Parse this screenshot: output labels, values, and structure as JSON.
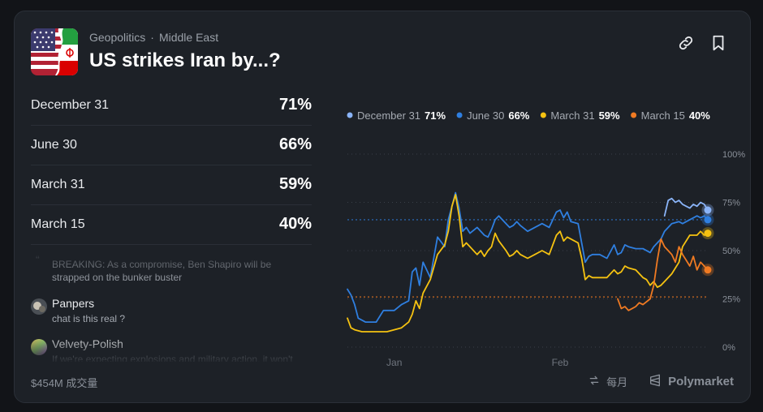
{
  "header": {
    "category": "Geopolitics",
    "separator": "·",
    "subcategory": "Middle East",
    "title": "US strikes Iran by...?"
  },
  "outcomes": [
    {
      "label": "December 31",
      "pct": "71%"
    },
    {
      "label": "June 30",
      "pct": "66%"
    },
    {
      "label": "March 31",
      "pct": "59%"
    },
    {
      "label": "March 15",
      "pct": "40%"
    }
  ],
  "comments": [
    {
      "user": "",
      "text": "BREAKING: As a compromise, Ben Shapiro will be strapped on the bunker buster"
    },
    {
      "user": "Panpers",
      "text": "chat is this real ?"
    },
    {
      "user": "Velvety-Polish",
      "text": "If we're expecting explosions and military action, it won't"
    }
  ],
  "footer": {
    "volume": "$454M 成交量",
    "interval": "每月",
    "brand": "Polymarket"
  },
  "colors": {
    "december": "#8ab4f8",
    "june": "#2f7fe0",
    "march31": "#f5c211",
    "march15": "#f07a22"
  },
  "chart_data": {
    "type": "line",
    "title": "",
    "xlabel": "",
    "ylabel": "",
    "ylim": [
      0,
      100
    ],
    "yticks": [
      {
        "v": 100,
        "label": "100%"
      },
      {
        "v": 75,
        "label": "75%"
      },
      {
        "v": 50,
        "label": "50%"
      },
      {
        "v": 25,
        "label": "25%"
      },
      {
        "v": 0,
        "label": "0%"
      }
    ],
    "xlim": [
      0,
      100
    ],
    "xticks": [
      {
        "x": 13,
        "label": "Jan"
      },
      {
        "x": 59,
        "label": "Feb"
      }
    ],
    "legend": [
      {
        "name": "December 31",
        "value": "71%",
        "color": "#8ab4f8"
      },
      {
        "name": "June 30",
        "value": "66%",
        "color": "#2f7fe0"
      },
      {
        "name": "March 31",
        "value": "59%",
        "color": "#f5c211"
      },
      {
        "name": "March 15",
        "value": "40%",
        "color": "#f07a22"
      }
    ],
    "series": [
      {
        "name": "December 31",
        "color": "#8ab4f8",
        "x": [
          88,
          89,
          90,
          91,
          92,
          93,
          94,
          95,
          96,
          97,
          98,
          99,
          100
        ],
        "y": [
          68,
          76,
          77,
          75,
          76,
          74,
          73,
          72,
          74,
          73,
          75,
          74,
          71
        ]
      },
      {
        "name": "June 30",
        "color": "#2f7fe0",
        "x": [
          0,
          1,
          2,
          3,
          5,
          8,
          10,
          13,
          15,
          17,
          18,
          19,
          20,
          21,
          23,
          25,
          27,
          28,
          29,
          30,
          31,
          32,
          33,
          34,
          36,
          37,
          38,
          39,
          40,
          41,
          42,
          44,
          45,
          46,
          47,
          48,
          50,
          52,
          54,
          56,
          58,
          59,
          60,
          61,
          62,
          64,
          65,
          66,
          67,
          68,
          70,
          72,
          74,
          75,
          76,
          77,
          78,
          80,
          82,
          84,
          85,
          86,
          87,
          88,
          90,
          92,
          93,
          95,
          97,
          98,
          99,
          100
        ],
        "y": [
          30,
          27,
          22,
          15,
          13,
          13,
          19,
          19,
          22,
          24,
          39,
          41,
          32,
          44,
          36,
          57,
          52,
          66,
          73,
          80,
          72,
          60,
          62,
          59,
          62,
          60,
          58,
          57,
          61,
          66,
          68,
          64,
          62,
          63,
          65,
          63,
          60,
          62,
          64,
          62,
          70,
          71,
          67,
          70,
          65,
          64,
          54,
          44,
          47,
          48,
          48,
          46,
          53,
          48,
          49,
          53,
          52,
          51,
          51,
          49,
          52,
          54,
          56,
          60,
          64,
          65,
          64,
          66,
          68,
          67,
          68,
          66
        ]
      },
      {
        "name": "March 31",
        "color": "#f5c211",
        "x": [
          0,
          1,
          2,
          4,
          6,
          8,
          10,
          11,
          13,
          15,
          17,
          18,
          19,
          20,
          21,
          23,
          25,
          27,
          28,
          29,
          30,
          31,
          32,
          33,
          34,
          36,
          37,
          38,
          39,
          40,
          41,
          42,
          44,
          45,
          46,
          47,
          48,
          50,
          52,
          54,
          56,
          58,
          59,
          60,
          61,
          62,
          64,
          65,
          66,
          67,
          68,
          70,
          72,
          74,
          75,
          76,
          77,
          78,
          80,
          82,
          83,
          84,
          85,
          86,
          87,
          88,
          90,
          92,
          93,
          95,
          97,
          98,
          99,
          100
        ],
        "y": [
          15,
          10,
          9,
          8,
          8,
          8,
          8,
          8,
          9,
          10,
          13,
          17,
          24,
          20,
          28,
          35,
          48,
          53,
          60,
          73,
          79,
          68,
          52,
          54,
          52,
          48,
          50,
          47,
          50,
          52,
          59,
          55,
          50,
          47,
          48,
          50,
          48,
          46,
          48,
          50,
          48,
          58,
          60,
          55,
          57,
          56,
          54,
          46,
          35,
          37,
          36,
          36,
          36,
          40,
          38,
          39,
          42,
          41,
          40,
          36,
          35,
          32,
          34,
          31,
          32,
          34,
          38,
          44,
          52,
          58,
          58,
          60,
          58,
          59
        ]
      },
      {
        "name": "March 15",
        "color": "#f07a22",
        "x": [
          75,
          76,
          77,
          78,
          79,
          80,
          81,
          82,
          84,
          85,
          86,
          87,
          88,
          89,
          90,
          91,
          92,
          93,
          94,
          95,
          96,
          97,
          98,
          99,
          100
        ],
        "y": [
          25,
          20,
          21,
          19,
          20,
          21,
          23,
          22,
          25,
          32,
          45,
          56,
          52,
          50,
          48,
          44,
          52,
          48,
          45,
          42,
          47,
          40,
          44,
          42,
          40
        ]
      }
    ],
    "ref_lines": [
      {
        "y": 66,
        "color": "#2f7fe0",
        "from_x": 0
      },
      {
        "y": 26,
        "color": "#f07a22",
        "from_x": 0
      }
    ]
  }
}
